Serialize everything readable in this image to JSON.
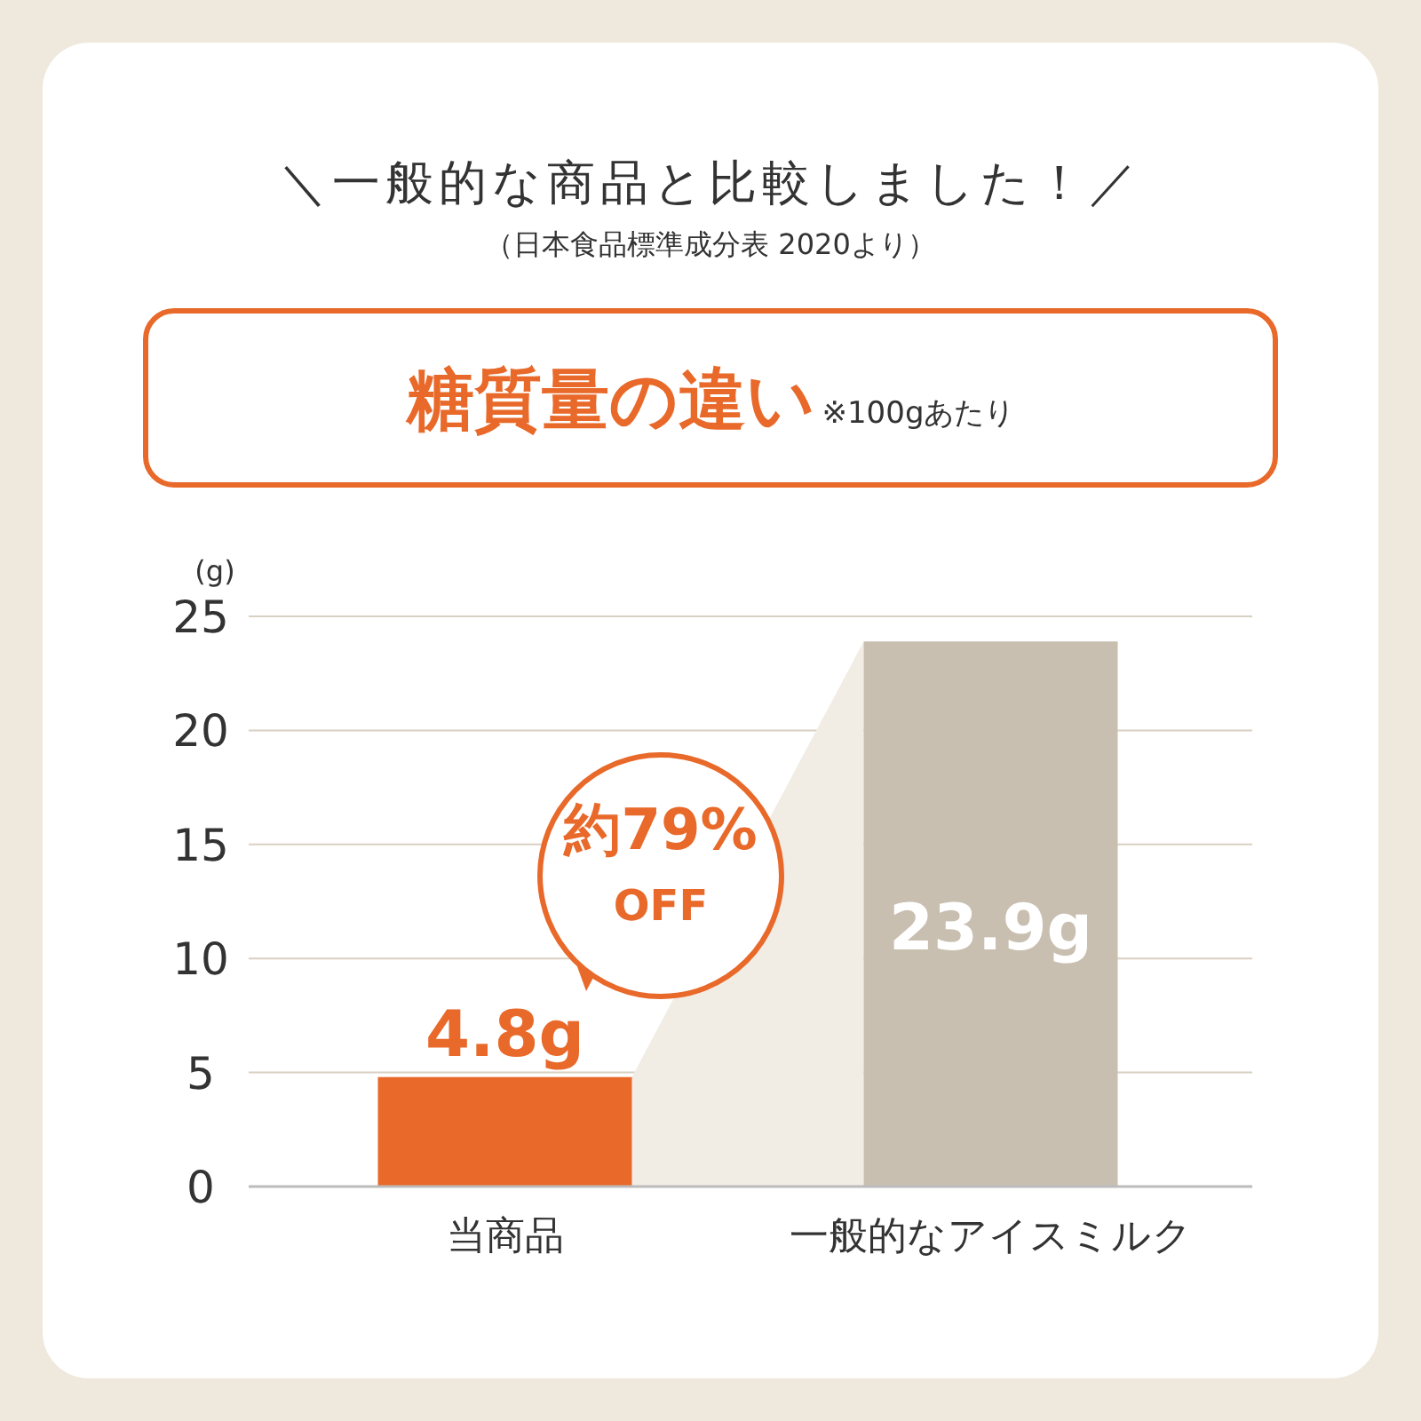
{
  "chart_data": {
    "type": "bar",
    "title": "＼一般的な商品と比較しました！／",
    "subtitle": "（日本食品標準成分表 2020より）",
    "annotations": [
      "糖質量の違い",
      "※100gあたり",
      "約79% OFF"
    ],
    "ylabel": "(g)",
    "categories": [
      "当商品",
      "一般的なアイスミルク"
    ],
    "values": [
      4.8,
      23.9
    ],
    "colors": [
      "#e8692a",
      "#c8bfb0"
    ],
    "value_labels": [
      "4.8g",
      "23.9g"
    ],
    "ylim": [
      0,
      25
    ],
    "yticks": [
      0,
      5,
      10,
      15,
      20,
      25
    ],
    "grid": "y"
  }
}
